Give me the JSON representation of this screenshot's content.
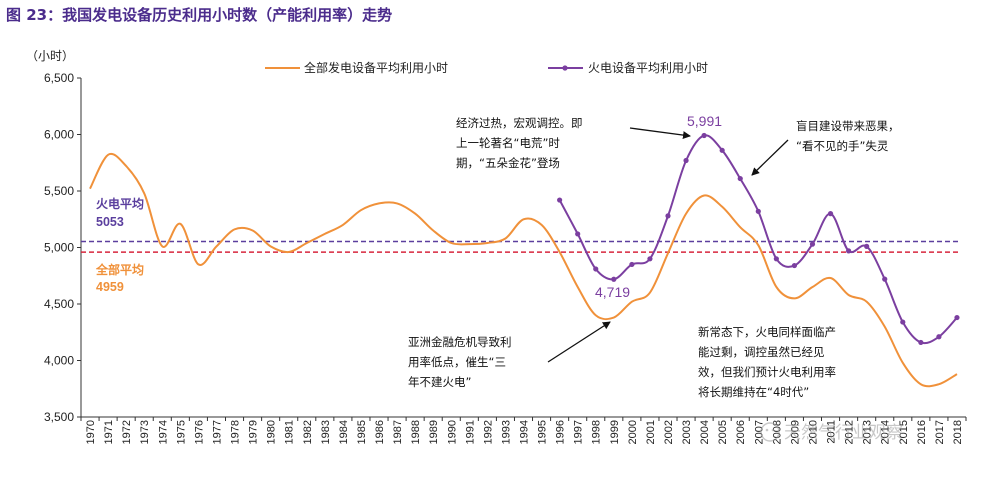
{
  "title": "图 23：我国发电设备历史利用小时数（产能利用率）走势",
  "watermark": "天然气行业观察",
  "colors": {
    "all": "#f0913a",
    "thermal": "#7b3fa0",
    "allRef": "#d7263d",
    "thermalRef": "#5b3f9e",
    "title": "#4b2c8c"
  },
  "chart_data": {
    "type": "line",
    "title": "我国发电设备历史利用小时数（产能利用率）走势",
    "ylabel": "（小时）",
    "ylim": [
      3500,
      6500
    ],
    "yticks": [
      3500,
      4000,
      4500,
      5000,
      5500,
      6000,
      6500
    ],
    "ytick_labels": [
      "3,500",
      "4,000",
      "4,500",
      "5,000",
      "5,500",
      "6,000",
      "6,500"
    ],
    "categories": [
      "1970",
      "1971",
      "1972",
      "1973",
      "1974",
      "1975",
      "1976",
      "1977",
      "1978",
      "1979",
      "1980",
      "1981",
      "1982",
      "1983",
      "1984",
      "1985",
      "1986",
      "1987",
      "1988",
      "1989",
      "1990",
      "1991",
      "1992",
      "1993",
      "1994",
      "1995",
      "1996",
      "1997",
      "1998",
      "1999",
      "2000",
      "2001",
      "2002",
      "2003",
      "2004",
      "2005",
      "2006",
      "2007",
      "2008",
      "2009",
      "2010",
      "2011",
      "2012",
      "2013",
      "2014",
      "2015",
      "2016",
      "2017",
      "2018"
    ],
    "series": [
      {
        "name": "全部发电设备平均利用小时",
        "color": "#f0913a",
        "markers": false,
        "x": [
          1970,
          1971,
          1972,
          1973,
          1974,
          1975,
          1976,
          1977,
          1978,
          1979,
          1980,
          1981,
          1982,
          1983,
          1984,
          1985,
          1986,
          1987,
          1988,
          1989,
          1990,
          1991,
          1992,
          1993,
          1994,
          1995,
          1996,
          1997,
          1998,
          1999,
          2000,
          2001,
          2002,
          2003,
          2004,
          2005,
          2006,
          2007,
          2008,
          2009,
          2010,
          2011,
          2012,
          2013,
          2014,
          2015,
          2016,
          2017,
          2018
        ],
        "values": [
          5520,
          5820,
          5720,
          5480,
          5010,
          5210,
          4850,
          5010,
          5160,
          5150,
          5010,
          4960,
          5040,
          5120,
          5200,
          5330,
          5390,
          5390,
          5300,
          5150,
          5040,
          5030,
          5040,
          5080,
          5250,
          5200,
          4960,
          4650,
          4400,
          4380,
          4520,
          4600,
          4950,
          5300,
          5460,
          5360,
          5180,
          5020,
          4650,
          4550,
          4650,
          4730,
          4580,
          4520,
          4300,
          3980,
          3790,
          3790,
          3880
        ]
      },
      {
        "name": "火电设备平均利用小时",
        "color": "#7b3fa0",
        "markers": true,
        "x": [
          1996,
          1997,
          1998,
          1999,
          2000,
          2001,
          2002,
          2003,
          2004,
          2005,
          2006,
          2007,
          2008,
          2009,
          2010,
          2011,
          2012,
          2013,
          2014,
          2015,
          2016,
          2017,
          2018
        ],
        "values": [
          5420,
          5120,
          4810,
          4719,
          4850,
          4900,
          5280,
          5770,
          5991,
          5860,
          5610,
          5320,
          4900,
          4840,
          5030,
          5300,
          4970,
          5010,
          4720,
          4340,
          4160,
          4210,
          4380
        ]
      }
    ],
    "reference_lines": [
      {
        "name": "火电平均",
        "value": 5053,
        "label": "5053",
        "color": "#5b3f9e"
      },
      {
        "name": "全部平均",
        "value": 4959,
        "label": "4959",
        "color": "#d7263d"
      }
    ],
    "annotations": [
      {
        "lines": [
          "经济过热，宏观调控。即",
          "上一轮著名“电荒”时",
          "期，“五朵金花”登场"
        ]
      },
      {
        "lines": [
          "盲目建设带来恶果，",
          "“看不见的手”失灵"
        ]
      },
      {
        "lines": [
          "亚洲金融危机导致利",
          "用率低点，催生“三",
          "年不建火电”"
        ]
      },
      {
        "lines": [
          "新常态下，火电同样面临产",
          "能过剩，调控虽然已经见",
          "效，但我们预计火电利用率",
          "将长期维持在“4时代”"
        ]
      }
    ],
    "point_labels": [
      {
        "series": "火电设备平均利用小时",
        "x": 2004,
        "text": "5,991"
      },
      {
        "series": "火电设备平均利用小时",
        "x": 1999,
        "text": "4,719"
      }
    ]
  }
}
